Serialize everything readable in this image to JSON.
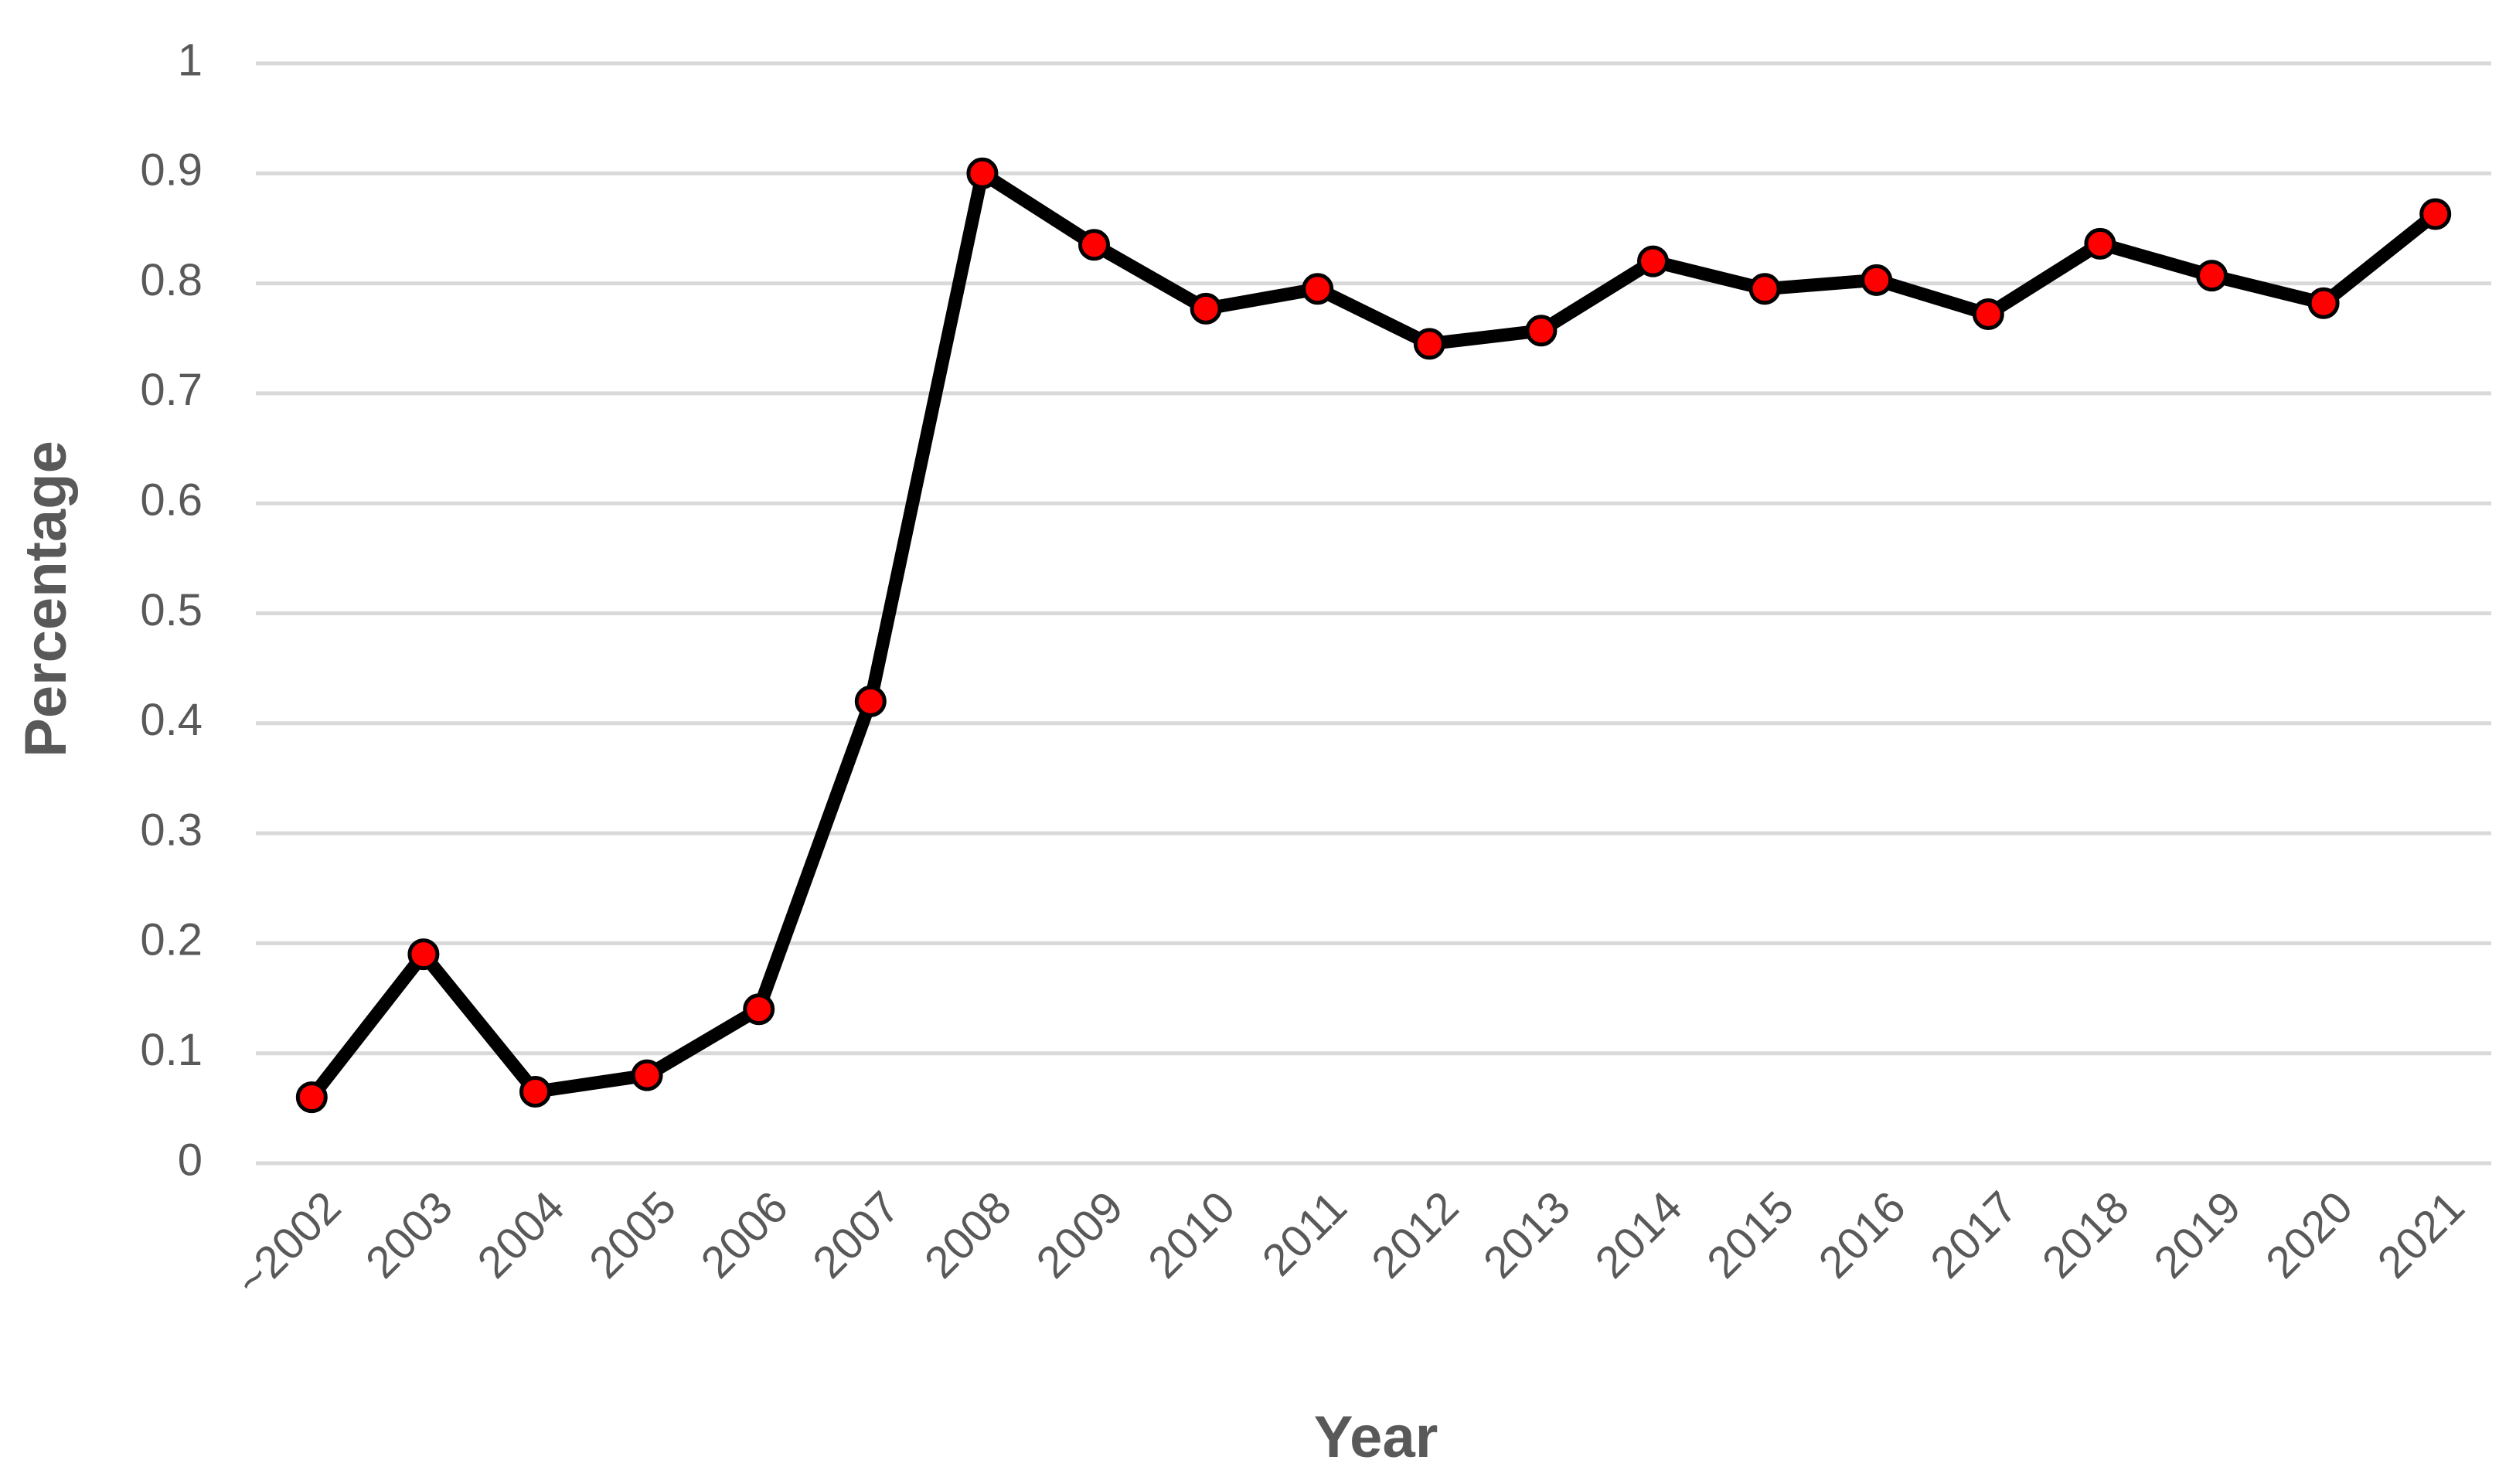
{
  "chart_data": {
    "type": "line",
    "x_label": "Year",
    "y_label": "Percentage",
    "categories": [
      "~2002",
      "2003",
      "2004",
      "2005",
      "2006",
      "2007",
      "2008",
      "2009",
      "2010",
      "2011",
      "2012",
      "2013",
      "2014",
      "2015",
      "2016",
      "2017",
      "2018",
      "2019",
      "2020",
      "2021"
    ],
    "series": [
      {
        "name": "Percentage",
        "color": "#000000",
        "marker_color": "#ff0000",
        "values": [
          0.06,
          0.19,
          0.065,
          0.08,
          0.14,
          0.42,
          0.9,
          0.835,
          0.777,
          0.795,
          0.745,
          0.757,
          0.82,
          0.795,
          0.803,
          0.772,
          0.836,
          0.807,
          0.782,
          0.863
        ]
      }
    ],
    "ylim": [
      0,
      1
    ],
    "yticks": [
      0,
      0.1,
      0.2,
      0.3,
      0.4,
      0.5,
      0.6,
      0.7,
      0.8,
      0.9,
      1
    ],
    "grid": true
  }
}
